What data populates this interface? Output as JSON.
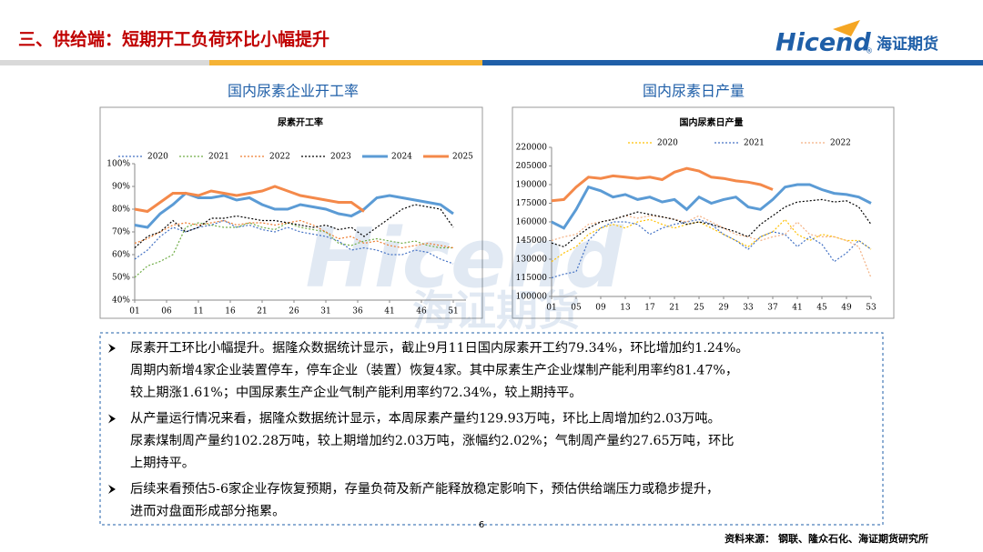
{
  "header": {
    "title": "三、供给端：短期开工负荷环比小幅提升",
    "logo": "Hicend",
    "logo_mark": "®",
    "logo_cn": "海证期货"
  },
  "panels": [
    "国内尿素企业开工率",
    "国内尿素日产量"
  ],
  "chart_data": [
    {
      "type": "line",
      "title": "尿素开工率",
      "x": [
        1,
        3,
        5,
        7,
        9,
        11,
        13,
        15,
        17,
        19,
        21,
        23,
        25,
        27,
        29,
        31,
        33,
        35,
        37,
        39,
        41,
        43,
        45,
        47,
        49,
        51
      ],
      "xlim": [
        1,
        53
      ],
      "xticks": [
        {
          "value": 1,
          "label": "01"
        },
        {
          "value": 6,
          "label": "06"
        },
        11,
        16,
        21,
        26,
        31,
        36,
        41,
        46,
        51
      ],
      "ylim": [
        40,
        100
      ],
      "yticks": [
        {
          "value": 40,
          "label": "40%"
        },
        {
          "value": 50,
          "label": "50%"
        },
        {
          "value": 60,
          "label": "60%"
        },
        {
          "value": 70,
          "label": "70%"
        },
        {
          "value": 80,
          "label": "80%"
        },
        {
          "value": 90,
          "label": "90%"
        },
        {
          "value": 100,
          "label": "100%"
        }
      ],
      "series": [
        {
          "name": "2020",
          "color": "#4472c4",
          "linestyle": "dotted",
          "values": [
            58,
            62,
            68,
            72,
            70,
            72,
            73,
            75,
            72,
            73,
            71,
            70,
            72,
            70,
            69,
            68,
            66,
            62,
            63,
            62,
            60,
            60,
            62,
            61,
            58,
            56
          ]
        },
        {
          "name": "2021",
          "color": "#70ad47",
          "linestyle": "dotted",
          "values": [
            50,
            55,
            57,
            60,
            72,
            74,
            73,
            72,
            72,
            74,
            72,
            71,
            74,
            72,
            71,
            70,
            65,
            64,
            66,
            67,
            66,
            65,
            66,
            64,
            63,
            63
          ]
        },
        {
          "name": "2022",
          "color": "#ed7d31",
          "linestyle": "dotted",
          "values": [
            65,
            67,
            70,
            73,
            74,
            73,
            74,
            75,
            73,
            74,
            74,
            73,
            74,
            75,
            73,
            70,
            67,
            68,
            65,
            66,
            64,
            63,
            64,
            65,
            64,
            63
          ]
        },
        {
          "name": "2023",
          "color": "#000000",
          "linestyle": "dotted",
          "values": [
            63,
            68,
            70,
            75,
            70,
            72,
            76,
            76,
            77,
            76,
            75,
            75,
            74,
            73,
            72,
            73,
            71,
            72,
            68,
            72,
            76,
            80,
            82,
            81,
            80,
            72
          ]
        },
        {
          "name": "2024",
          "color": "#5b9bd5",
          "linestyle": "solid",
          "values": [
            73,
            72,
            78,
            82,
            87,
            85,
            85,
            86,
            84,
            85,
            82,
            80,
            80,
            82,
            81,
            80,
            78,
            77,
            80,
            85,
            86,
            85,
            84,
            83,
            82,
            78
          ]
        },
        {
          "name": "2025",
          "color": "#f4894a",
          "linestyle": "solid",
          "values": [
            80,
            79,
            83,
            87,
            87,
            86,
            88,
            87,
            86,
            87,
            88,
            90,
            88,
            86,
            85,
            84,
            83,
            83,
            79,
            null,
            null,
            null,
            null,
            null,
            null,
            null
          ]
        }
      ]
    },
    {
      "type": "line",
      "title": "国内尿素日产量",
      "x": [
        1,
        3,
        5,
        7,
        9,
        11,
        13,
        15,
        17,
        19,
        21,
        23,
        25,
        27,
        29,
        31,
        33,
        35,
        37,
        39,
        41,
        43,
        45,
        47,
        49,
        51,
        53
      ],
      "xlim": [
        1,
        53
      ],
      "xticks": [
        {
          "value": 1,
          "label": "01"
        },
        {
          "value": 5,
          "label": "05"
        },
        {
          "value": 9,
          "label": "09"
        },
        13,
        17,
        21,
        25,
        29,
        33,
        37,
        41,
        45,
        49,
        53
      ],
      "ylim": [
        100000,
        220000
      ],
      "yticks": [
        100000,
        115000,
        130000,
        145000,
        160000,
        175000,
        190000,
        205000,
        220000
      ],
      "series": [
        {
          "name": "2020",
          "color": "#ffc000",
          "linestyle": "dotted",
          "values": [
            128000,
            135000,
            140000,
            150000,
            155000,
            158000,
            155000,
            160000,
            162000,
            158000,
            155000,
            158000,
            160000,
            155000,
            150000,
            145000,
            140000,
            148000,
            152000,
            162000,
            150000,
            145000,
            150000,
            148000,
            145000,
            145000,
            138000
          ]
        },
        {
          "name": "2021",
          "color": "#4472c4",
          "linestyle": "dotted",
          "values": [
            115000,
            118000,
            120000,
            145000,
            155000,
            160000,
            160000,
            158000,
            150000,
            155000,
            158000,
            160000,
            162000,
            158000,
            150000,
            145000,
            138000,
            148000,
            152000,
            150000,
            140000,
            148000,
            142000,
            128000,
            135000,
            145000,
            138000
          ]
        },
        {
          "name": "2022",
          "color": "#f4b183",
          "linestyle": "dotted",
          "values": [
            145000,
            148000,
            150000,
            158000,
            160000,
            162000,
            165000,
            163000,
            165000,
            164000,
            162000,
            160000,
            165000,
            160000,
            155000,
            150000,
            148000,
            145000,
            148000,
            150000,
            160000,
            150000,
            148000,
            148000,
            145000,
            140000,
            115000
          ]
        },
        {
          "color": "#000000",
          "linestyle": "dotted",
          "values": [
            143000,
            140000,
            148000,
            155000,
            160000,
            162000,
            165000,
            168000,
            166000,
            164000,
            162000,
            158000,
            160000,
            158000,
            155000,
            152000,
            148000,
            158000,
            165000,
            172000,
            176000,
            177000,
            178000,
            176000,
            177000,
            172000,
            158000
          ]
        },
        {
          "color": "#5b9bd5",
          "linestyle": "solid",
          "values": [
            160000,
            155000,
            170000,
            188000,
            185000,
            180000,
            182000,
            178000,
            180000,
            176000,
            178000,
            170000,
            180000,
            175000,
            178000,
            180000,
            172000,
            170000,
            178000,
            188000,
            190000,
            190000,
            186000,
            183000,
            182000,
            180000,
            175000
          ]
        },
        {
          "color": "#f4894a",
          "linestyle": "solid",
          "values": [
            177000,
            178000,
            188000,
            196000,
            195000,
            197000,
            196000,
            195000,
            196000,
            194000,
            200000,
            203000,
            201000,
            196000,
            195000,
            193000,
            192000,
            190000,
            186000,
            null,
            null,
            null,
            null,
            null,
            null,
            null,
            null
          ]
        }
      ]
    }
  ],
  "bullets": [
    [
      "尿素开工环比小幅提升。据隆众数据统计显示，截止9月11日国内尿素开工约79.34%，环比增加约1.24%。",
      "周期内新增4家企业装置停车，停车企业（装置）恢复4家。其中尿素生产企业煤制产能利用率约81.47%，",
      "较上期涨1.61%；中国尿素生产企业气制产能利用率约72.34%，较上期持平。"
    ],
    [
      "从产量运行情况来看，据隆众数据统计显示，本周尿素产量约129.93万吨，环比上周增加约2.03万吨。",
      "尿素煤制周产量约102.28万吨，较上期增加约2.03万吨，涨幅约2.02%；气制周产量约27.65万吨，环比",
      "上期持平。"
    ],
    [
      "后续来看预估5-6家企业存恢复预期，存量负荷及新产能释放稳定影响下，预估供给端压力或稳步提升，",
      "进而对盘面形成部分拖累。"
    ]
  ],
  "page_number": "6",
  "source": "资料来源： 钢联、隆众石化、海证期货研究所"
}
